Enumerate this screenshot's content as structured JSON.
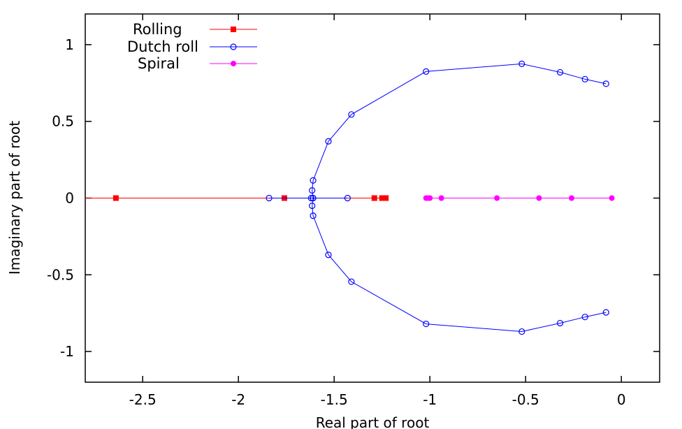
{
  "chart_data": {
    "type": "scatter",
    "title": "",
    "xlabel": "Real part of root",
    "ylabel": "Imaginary part of root",
    "xlim": [
      -2.8,
      0.2
    ],
    "ylim": [
      -1.2,
      1.2
    ],
    "xticks": [
      -2.5,
      -2,
      -1.5,
      -1,
      -0.5,
      0
    ],
    "xtick_labels": [
      "-2.5",
      "-2",
      "-1.5",
      "-1",
      "-0.5",
      "0"
    ],
    "yticks": [
      1,
      0.5,
      0,
      -0.5,
      -1
    ],
    "ytick_labels": [
      "1",
      "0.5",
      "0",
      "-0.5",
      "-1"
    ],
    "grid": false,
    "legend_position": "top-left",
    "series": [
      {
        "name": "Rolling",
        "color": "#ff0000",
        "marker": "filled-square",
        "connected": true,
        "points": [
          [
            -2.64,
            0
          ],
          [
            -1.76,
            0
          ],
          [
            -1.29,
            0
          ],
          [
            -1.25,
            0
          ],
          [
            -1.23,
            0
          ]
        ]
      },
      {
        "name": "Dutch roll",
        "color": "#0000ff",
        "marker": "open-circle",
        "connected": true,
        "branches": [
          [
            [
              -1.84,
              0
            ],
            [
              -1.62,
              0
            ],
            [
              -1.43,
              0
            ]
          ],
          [
            [
              -1.61,
              0
            ],
            [
              -1.615,
              0.05
            ],
            [
              -1.61,
              0.115
            ],
            [
              -1.53,
              0.37
            ],
            [
              -1.41,
              0.545
            ],
            [
              -1.02,
              0.825
            ],
            [
              -0.52,
              0.875
            ],
            [
              -0.32,
              0.82
            ],
            [
              -0.19,
              0.775
            ],
            [
              -0.08,
              0.745
            ]
          ],
          [
            [
              -1.61,
              0
            ],
            [
              -1.615,
              -0.05
            ],
            [
              -1.61,
              -0.115
            ],
            [
              -1.53,
              -0.37
            ],
            [
              -1.41,
              -0.545
            ],
            [
              -1.02,
              -0.82
            ],
            [
              -0.52,
              -0.87
            ],
            [
              -0.32,
              -0.815
            ],
            [
              -0.19,
              -0.775
            ],
            [
              -0.08,
              -0.745
            ]
          ]
        ]
      },
      {
        "name": "Spiral",
        "color": "#ff00ff",
        "marker": "filled-circle",
        "connected": true,
        "points": [
          [
            -1.02,
            0
          ],
          [
            -1.01,
            0
          ],
          [
            -1.0,
            0
          ],
          [
            -0.94,
            0
          ],
          [
            -0.65,
            0
          ],
          [
            -0.43,
            0
          ],
          [
            -0.26,
            0
          ],
          [
            -0.05,
            0
          ]
        ]
      }
    ]
  }
}
